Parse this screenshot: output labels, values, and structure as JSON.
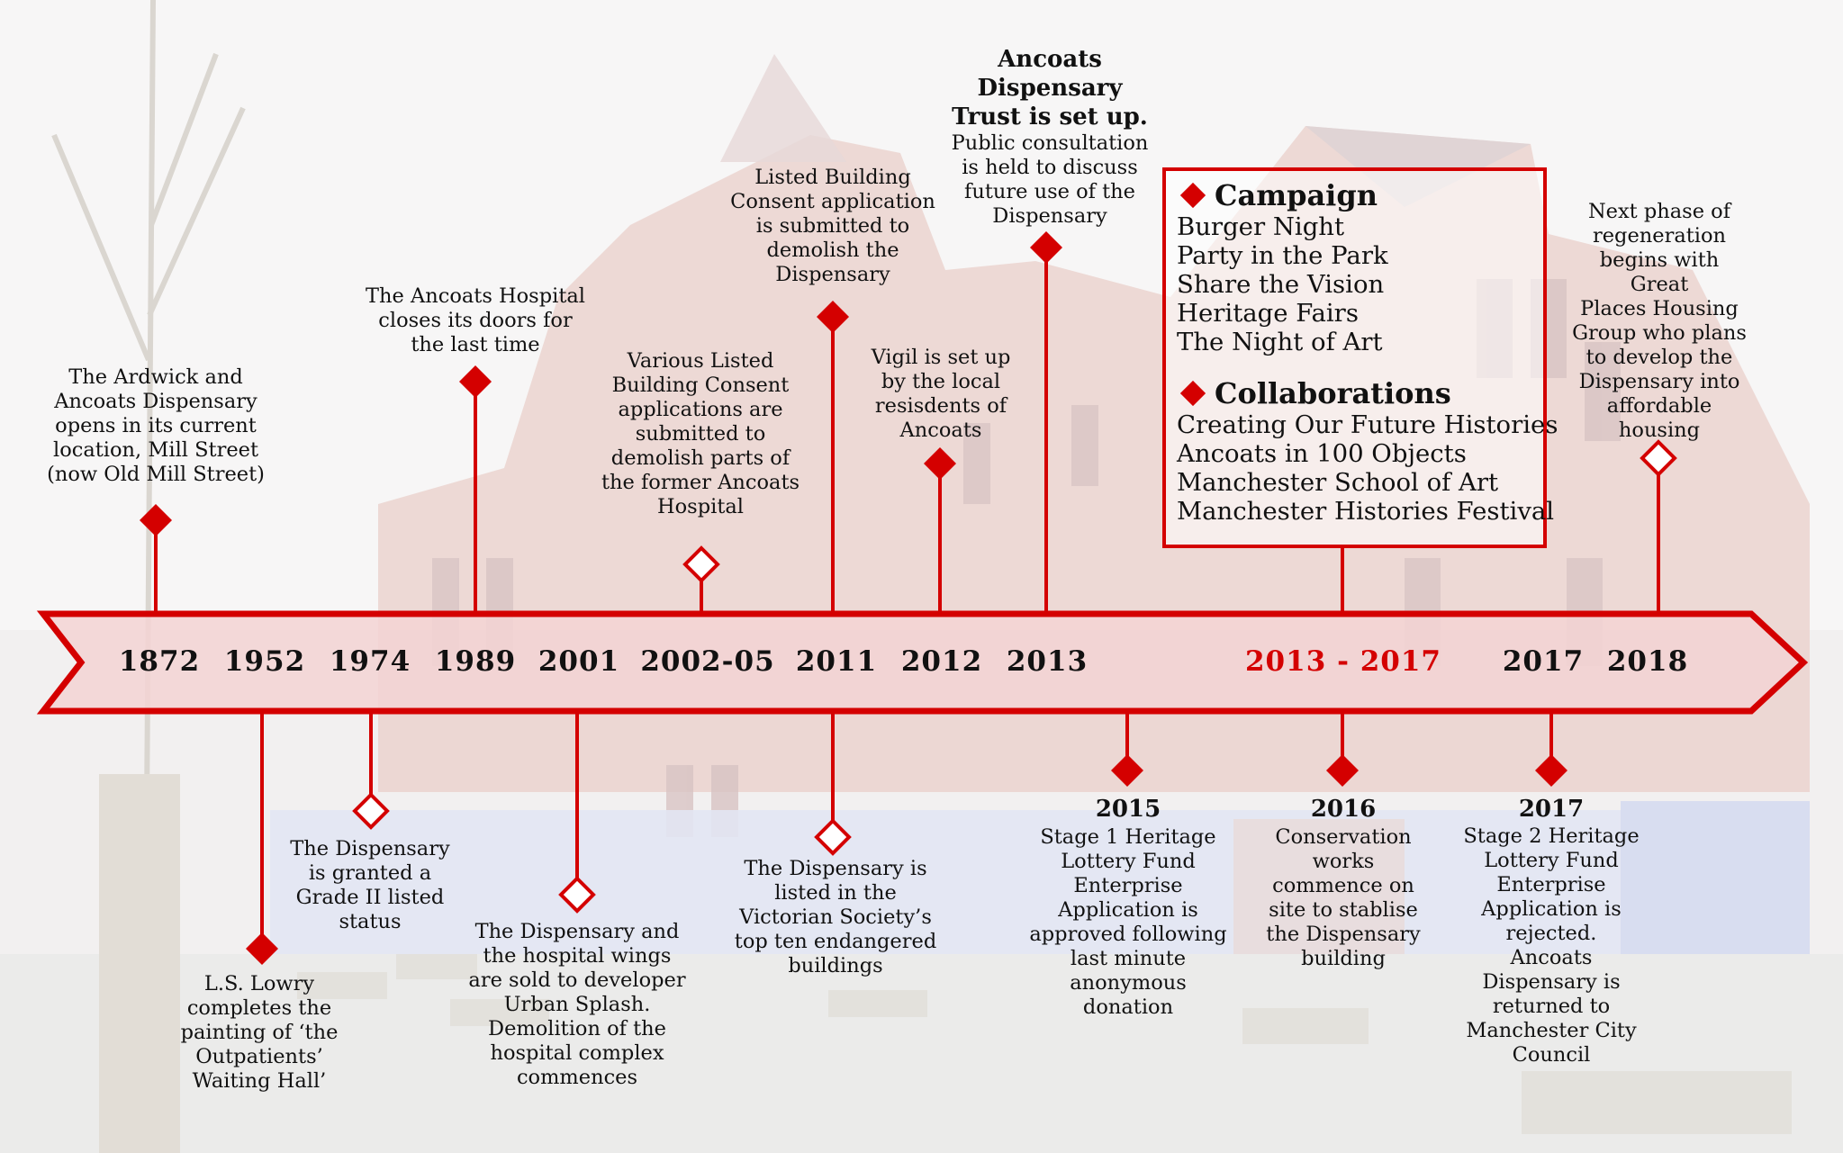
{
  "colors": {
    "accent": "#d40000",
    "arrow_fill": "#f4d7d7"
  },
  "years": [
    "1872",
    "1952",
    "1974",
    "1989",
    "2001",
    "2002-05",
    "2011",
    "2012",
    "2013",
    "2013 - 2017",
    "2017",
    "2018"
  ],
  "events": {
    "e1872": "The Ardwick and\nAncoats Dispensary\nopens in its current\nlocation, Mill Street\n(now Old Mill Street)",
    "e1952": "L.S. Lowry\ncompletes the\npainting of ‘the\nOutpatients’\nWaiting Hall’",
    "e1974": "The Dispensary\nis granted a\nGrade II listed\nstatus",
    "e1989": "The Ancoats Hospital\ncloses its doors for\nthe last time",
    "e2001": "The Dispensary and\nthe hospital wings\nare sold to developer\nUrban Splash.\nDemolition of the\nhospital complex\ncommences",
    "e2002": "Various Listed\nBuilding Consent\napplications are\nsubmitted to\ndemolish parts of\nthe former Ancoats\nHospital",
    "e2011a": "Listed Building\nConsent application\nis submitted to\ndemolish the\nDispensary",
    "e2011b": "The Dispensary is\nlisted in the\nVictorian Society’s\ntop ten endangered\nbuildings",
    "e2012": "Vigil is set up\nby the local\nresisdents of\nAncoats",
    "e2013_title": "Ancoats\nDispensary\nTrust is set up.",
    "e2013_body": "Public consultation\nis held to discuss\nfuture use of the\nDispensary",
    "e2015_year": "2015",
    "e2015": "Stage 1 Heritage\nLottery Fund\nEnterprise\nApplication is\napproved following\nlast minute\nanonymous\ndonation",
    "e2016_year": "2016",
    "e2016": "Conservation\nworks\ncommence on\nsite to stablise\nthe Dispensary\nbuilding",
    "e2017_year": "2017",
    "e2017": "Stage 2 Heritage\nLottery Fund\nEnterprise\nApplication is\nrejected.\nAncoats\nDispensary is\nreturned to\nManchester City\nCouncil",
    "e2018": "Next phase of\nregeneration\nbegins with Great\nPlaces Housing\nGroup who plans\nto develop the\nDispensary into\naffordable\nhousing"
  },
  "box": {
    "campaign_title": "Campaign",
    "campaign_items": [
      "Burger Night",
      "Party in the Park",
      "Share the Vision",
      "Heritage Fairs",
      "The Night of Art"
    ],
    "collab_title": "Collaborations",
    "collab_items": [
      "Creating Our Future Histories",
      "Ancoats in 100 Objects",
      "Manchester School of Art",
      "Manchester Histories Festival"
    ]
  }
}
